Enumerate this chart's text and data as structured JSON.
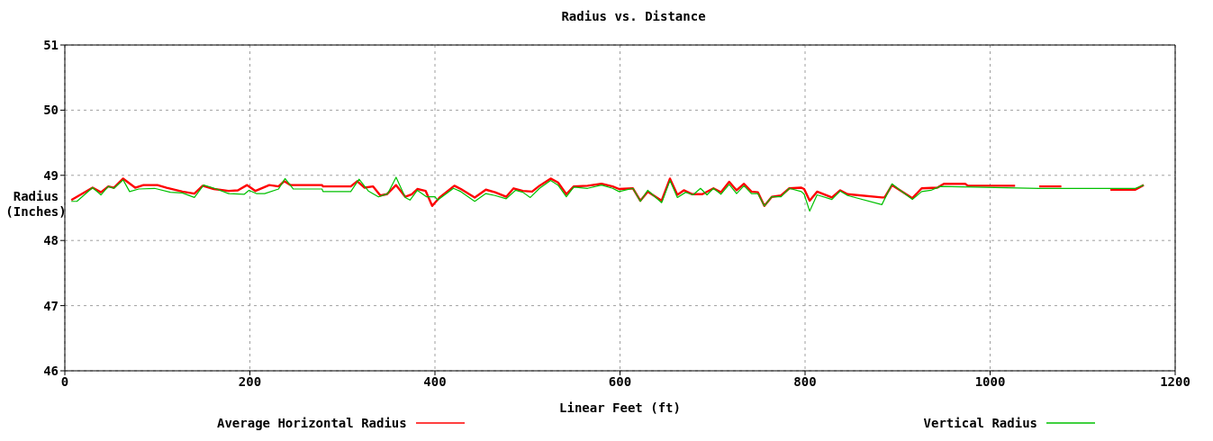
{
  "chart_data": {
    "type": "line",
    "title": "Radius vs. Distance",
    "xlabel": "Linear Feet (ft)",
    "ylabel": "Radius\n(Inches)",
    "xlim": [
      0,
      1200
    ],
    "xticks": [
      0,
      200,
      400,
      600,
      800,
      1000,
      1200
    ],
    "ylim": [
      46,
      51
    ],
    "yticks": [
      46,
      47,
      48,
      49,
      50,
      51
    ],
    "grid": true,
    "legend": "bottom",
    "marker": "none",
    "line_style": "solid",
    "series": [
      {
        "name": "Average Horizontal Radius",
        "color": "#ff0000",
        "x": [
          7,
          30,
          39,
          47,
          53,
          63,
          76,
          85,
          100,
          110,
          127,
          140,
          149,
          161,
          177,
          187,
          197,
          206,
          221,
          231,
          237,
          244,
          278,
          279,
          291,
          309,
          316,
          324,
          333,
          341,
          348,
          358,
          368,
          375,
          381,
          390,
          397,
          405,
          421,
          428,
          443,
          455,
          465,
          477,
          485,
          495,
          505,
          513,
          525,
          533,
          542,
          550,
          565,
          580,
          592,
          599,
          614,
          622,
          630,
          645,
          654,
          662,
          669,
          678,
          689,
          701,
          709,
          718,
          726,
          734,
          742,
          749,
          756,
          764,
          774,
          783,
          796,
          799,
          805,
          813,
          829,
          838,
          846,
          883,
          886,
          894,
          916,
          926,
          943,
          950,
          973,
          976,
          1027,
          1040,
          1053,
          1077,
          1100,
          1130,
          1157,
          1166
        ],
        "values": [
          48.62,
          48.81,
          48.74,
          48.83,
          48.81,
          48.95,
          48.81,
          48.85,
          48.85,
          48.81,
          48.75,
          48.72,
          48.84,
          48.79,
          48.76,
          48.77,
          48.85,
          48.76,
          48.85,
          48.83,
          48.91,
          48.85,
          48.85,
          48.83,
          48.83,
          48.83,
          48.91,
          48.81,
          48.83,
          48.69,
          48.71,
          48.85,
          48.67,
          48.71,
          48.79,
          48.76,
          48.53,
          48.66,
          48.84,
          48.79,
          48.66,
          48.78,
          48.74,
          48.67,
          48.8,
          48.76,
          48.75,
          48.84,
          48.95,
          48.89,
          48.71,
          48.83,
          48.84,
          48.87,
          48.83,
          48.79,
          48.8,
          48.61,
          48.75,
          48.61,
          48.95,
          48.7,
          48.77,
          48.71,
          48.71,
          48.8,
          48.74,
          48.9,
          48.77,
          48.87,
          48.75,
          48.74,
          48.53,
          48.67,
          48.69,
          48.8,
          48.81,
          48.79,
          48.61,
          48.75,
          48.66,
          48.77,
          48.71,
          48.66,
          48.66,
          48.85,
          48.65,
          48.8,
          48.81,
          48.87,
          48.87,
          48.84,
          48.84,
          null,
          48.83,
          48.83,
          null,
          48.78,
          48.78,
          48.85
        ]
      },
      {
        "name": "Vertical Radius",
        "color": "#00c000",
        "x": [
          7,
          13,
          30,
          39,
          47,
          53,
          63,
          70,
          80,
          97,
          114,
          127,
          140,
          150,
          164,
          177,
          194,
          199,
          207,
          216,
          231,
          238,
          247,
          278,
          279,
          309,
          318,
          328,
          339,
          349,
          358,
          368,
          373,
          381,
          391,
          400,
          403,
          420,
          428,
          443,
          455,
          465,
          477,
          487,
          495,
          503,
          513,
          525,
          533,
          542,
          550,
          565,
          580,
          592,
          599,
          614,
          622,
          630,
          645,
          654,
          662,
          671,
          679,
          687,
          694,
          701,
          709,
          718,
          726,
          734,
          742,
          749,
          756,
          764,
          774,
          783,
          796,
          799,
          805,
          813,
          829,
          838,
          846,
          883,
          894,
          901,
          916,
          926,
          936,
          946,
          1053,
          1157,
          1166
        ],
        "values": [
          48.6,
          48.6,
          48.81,
          48.7,
          48.83,
          48.8,
          48.93,
          48.75,
          48.79,
          48.8,
          48.74,
          48.73,
          48.66,
          48.85,
          48.79,
          48.72,
          48.71,
          48.77,
          48.72,
          48.72,
          48.79,
          48.95,
          48.79,
          48.79,
          48.75,
          48.75,
          48.94,
          48.76,
          48.67,
          48.72,
          48.97,
          48.66,
          48.62,
          48.77,
          48.67,
          48.67,
          48.62,
          48.8,
          48.75,
          48.6,
          48.72,
          48.69,
          48.64,
          48.77,
          48.74,
          48.66,
          48.8,
          48.92,
          48.85,
          48.67,
          48.82,
          48.8,
          48.85,
          48.8,
          48.75,
          48.8,
          48.6,
          48.77,
          48.58,
          48.92,
          48.66,
          48.74,
          48.7,
          48.8,
          48.7,
          48.8,
          48.71,
          48.86,
          48.72,
          48.84,
          48.72,
          48.72,
          48.53,
          48.67,
          48.67,
          48.8,
          48.75,
          48.71,
          48.45,
          48.7,
          48.63,
          48.76,
          48.69,
          48.55,
          48.87,
          48.79,
          48.63,
          48.75,
          48.77,
          48.83,
          48.8,
          48.8,
          48.85
        ]
      }
    ]
  }
}
